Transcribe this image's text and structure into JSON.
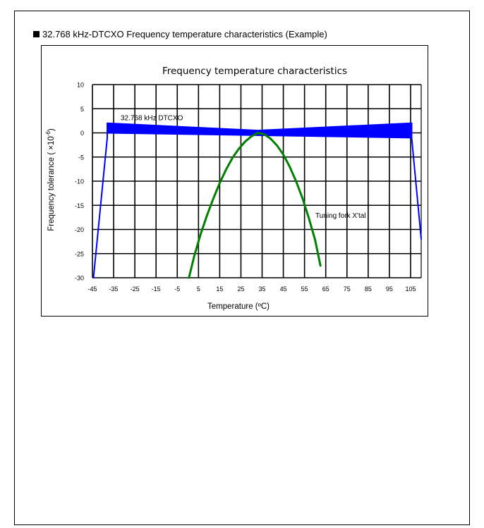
{
  "heading": "32.768 kHz-DTCXO Frequency temperature characteristics (Example)",
  "chart_data": {
    "type": "line",
    "title": "Frequency temperature characteristics",
    "xlabel": "Temperature (ºC)",
    "ylabel_main": "Frequency tolerance ( ×10",
    "ylabel_exp": "-6",
    "ylabel_close": ")",
    "xlim": [
      -45,
      110
    ],
    "ylim": [
      -30,
      10
    ],
    "x_ticks": [
      -45,
      -35,
      -25,
      -15,
      -5,
      5,
      15,
      25,
      35,
      45,
      55,
      65,
      75,
      85,
      95,
      105
    ],
    "y_ticks": [
      10,
      5,
      0,
      -5,
      -10,
      -15,
      -20,
      -25,
      -30
    ],
    "grid": true,
    "series": [
      {
        "name": "32.768 kHz DTCXO",
        "color": "#0000ff",
        "upper": {
          "x": [
            -44.5,
            -38,
            -38,
            33,
            105.5,
            105.5,
            110
          ],
          "y": [
            -30,
            -1,
            2,
            0.5,
            2,
            -1,
            -22
          ]
        },
        "lower": {
          "x": [
            -44.5,
            -38,
            -38,
            33,
            105.5,
            105.5,
            110
          ],
          "y": [
            -30,
            -1,
            0,
            -0.5,
            -1,
            -1,
            -22
          ]
        }
      },
      {
        "name": "Tuning fork X'tal",
        "color": "#008000",
        "x": [
          0.5,
          3,
          6,
          9,
          12,
          15,
          18,
          21,
          24,
          27,
          30,
          33,
          36,
          39,
          42,
          45,
          48,
          51,
          54,
          57,
          60,
          62.5
        ],
        "y": [
          -30,
          -25.5,
          -21,
          -17.1,
          -13.6,
          -10.4,
          -7.6,
          -5.2,
          -3.3,
          -1.8,
          -0.7,
          0,
          -0.3,
          -1.2,
          -2.6,
          -4.5,
          -7.0,
          -10.0,
          -13.5,
          -17.6,
          -22.2,
          -27.5
        ]
      }
    ],
    "annotations": [
      {
        "text": "32.768 kHz DTCXO",
        "x": -17,
        "y": 2.6
      },
      {
        "text": "Tuning fork X'tal",
        "x": 72,
        "y": -17.6
      }
    ]
  }
}
